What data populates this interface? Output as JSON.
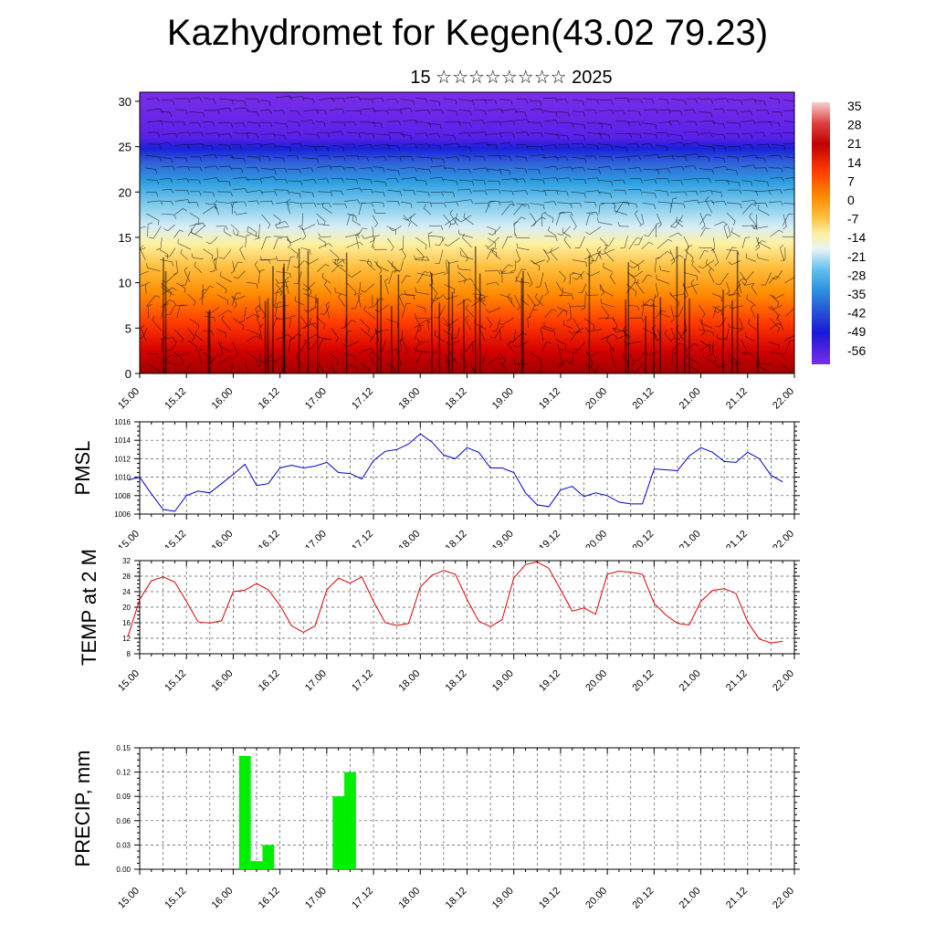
{
  "header": {
    "title": "Kazhydromet for Kegen(43.02 79.23)",
    "subtitle": "15 ☆☆☆☆☆☆☆☆ 2025"
  },
  "time_ticks": [
    "15.00",
    "15.12",
    "16.00",
    "16.12",
    "17.00",
    "17.12",
    "18.00",
    "18.12",
    "19.00",
    "19.12",
    "20.00",
    "20.12",
    "21.00",
    "21.12",
    "22.00"
  ],
  "chart_data": [
    {
      "type": "heatmap",
      "title": "",
      "xlabel": "",
      "ylabel": "",
      "x_ticks": [
        "15.00",
        "15.12",
        "16.00",
        "16.12",
        "17.00",
        "17.12",
        "18.00",
        "18.12",
        "19.00",
        "19.12",
        "20.00",
        "20.12",
        "21.00",
        "21.12",
        "22.00"
      ],
      "y_ticks": [
        0,
        5,
        10,
        15,
        20,
        25,
        30
      ],
      "ylim": [
        0,
        31
      ],
      "colorbar_labels": [
        "35",
        "28",
        "21",
        "14",
        "7",
        "0",
        "-7",
        "-14",
        "-21",
        "-28",
        "-35",
        "-42",
        "-49",
        "-56"
      ],
      "colorbar_colors": [
        "#f4c3c3",
        "#e23a3a",
        "#c80000",
        "#ff3300",
        "#ff8800",
        "#ffbb44",
        "#ffee99",
        "#fff6c8",
        "#c6e4f2",
        "#3fb3e6",
        "#3f7fd8",
        "#2244e0",
        "#3300dd",
        "#7a2ee8"
      ],
      "overlay": "wind barbs"
    },
    {
      "type": "line",
      "ylabel": "PMSL",
      "ylim": [
        1006,
        1016
      ],
      "y_ticks": [
        1006,
        1008,
        1010,
        1012,
        1014,
        1016
      ],
      "x_ticks": [
        "15.00",
        "15.12",
        "16.00",
        "16.12",
        "17.00",
        "17.12",
        "18.00",
        "18.12",
        "19.00",
        "19.12",
        "20.00",
        "20.12",
        "21.00",
        "21.12",
        "22.00"
      ],
      "x_hours_start": -3,
      "x_hours_step": 3,
      "series": [
        {
          "color": "#0000cc",
          "values": [
            1009.7,
            1010.0,
            1008.2,
            1006.5,
            1006.3,
            1008.0,
            1008.5,
            1008.3,
            1009.3,
            1010.3,
            1011.4,
            1009.1,
            1009.3,
            1011.0,
            1011.3,
            1011.0,
            1011.2,
            1011.6,
            1010.5,
            1010.4,
            1009.8,
            1011.8,
            1012.8,
            1013.0,
            1013.6,
            1014.7,
            1013.8,
            1012.4,
            1012.0,
            1013.2,
            1012.7,
            1011.0,
            1011.0,
            1010.5,
            1008.3,
            1007.0,
            1006.8,
            1008.6,
            1009.0,
            1007.9,
            1008.3,
            1008.0,
            1007.3,
            1007.1,
            1007.1,
            1010.9,
            1010.8,
            1010.7,
            1012.3,
            1013.2,
            1012.7,
            1011.7,
            1011.6,
            1012.7,
            1012.0,
            1010.2,
            1009.5
          ]
        }
      ]
    },
    {
      "type": "line",
      "ylabel": "TEMP at 2 M",
      "ylim": [
        8,
        32
      ],
      "y_ticks": [
        8,
        12,
        16,
        20,
        24,
        28,
        32
      ],
      "x_ticks": [
        "15.00",
        "15.12",
        "16.00",
        "16.12",
        "17.00",
        "17.12",
        "18.00",
        "18.12",
        "19.00",
        "19.12",
        "20.00",
        "20.12",
        "21.00",
        "21.12",
        "22.00"
      ],
      "x_hours_start": -3,
      "x_hours_step": 3,
      "series": [
        {
          "color": "#dd0000",
          "values": [
            12.5,
            22.0,
            26.8,
            27.8,
            26.5,
            21.5,
            16.2,
            15.9,
            16.5,
            24.0,
            24.4,
            26.1,
            24.5,
            20.5,
            15.2,
            13.5,
            15.2,
            24.5,
            27.5,
            26.2,
            27.8,
            21.5,
            16.0,
            15.3,
            15.8,
            25.2,
            28.2,
            29.5,
            28.5,
            22.0,
            16.4,
            15.0,
            16.8,
            27.5,
            31.0,
            31.7,
            30.0,
            24.5,
            19.0,
            19.8,
            18.2,
            28.5,
            29.3,
            29.0,
            28.5,
            21.0,
            18.0,
            15.8,
            15.4,
            21.5,
            24.3,
            24.8,
            23.5,
            16.2,
            11.8,
            10.8,
            11.2
          ]
        }
      ]
    },
    {
      "type": "bar",
      "ylabel": "PRECIP, mm",
      "ylim": [
        0,
        0.15
      ],
      "y_ticks": [
        "0.00",
        "0.03",
        "0.06",
        "0.09",
        "0.12",
        "0.15"
      ],
      "x_ticks": [
        "15.00",
        "15.12",
        "16.00",
        "16.12",
        "17.00",
        "17.12",
        "18.00",
        "18.12",
        "19.00",
        "19.12",
        "20.00",
        "20.12",
        "21.00",
        "21.12",
        "22.00"
      ],
      "bar_color": "#00ee00",
      "bars": [
        {
          "hour": 27,
          "value": 0.14
        },
        {
          "hour": 30,
          "value": 0.01
        },
        {
          "hour": 33,
          "value": 0.03
        },
        {
          "hour": 51,
          "value": 0.09
        },
        {
          "hour": 54,
          "value": 0.12
        }
      ]
    }
  ]
}
